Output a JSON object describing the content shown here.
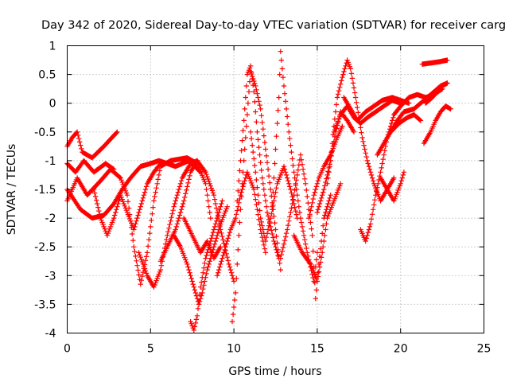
{
  "chart_data": {
    "type": "scatter",
    "title": "Day 342 of 2020, Sidereal Day-to-day VTEC variation (SDTVAR) for receiver carg",
    "xlabel": "GPS time / hours",
    "ylabel": "SDTVAR / TECUs",
    "xlim": [
      0,
      25
    ],
    "ylim": [
      -4,
      1
    ],
    "xticks": [
      0,
      5,
      10,
      15,
      20,
      25
    ],
    "yticks": [
      -4,
      -3.5,
      -3,
      -2.5,
      -2,
      -1.5,
      -1,
      -0.5,
      0,
      0.5,
      1
    ],
    "xtick_labels": [
      "0",
      "5",
      "10",
      "15",
      "20",
      "25"
    ],
    "ytick_labels": [
      "-4",
      "-3.5",
      "-3",
      "-2.5",
      "-2",
      "-1.5",
      "-1",
      "-0.5",
      "0",
      "0.5",
      "1"
    ],
    "grid": true,
    "marker": "plus",
    "color": "#ff0000",
    "tracks": [
      [
        [
          0.0,
          -0.75
        ],
        [
          0.3,
          -0.6
        ],
        [
          0.6,
          -0.5
        ],
        [
          0.9,
          -0.85
        ],
        [
          1.5,
          -0.95
        ],
        [
          2.2,
          -0.75
        ],
        [
          3.0,
          -0.5
        ]
      ],
      [
        [
          0.0,
          -1.05
        ],
        [
          0.5,
          -1.2
        ],
        [
          1.0,
          -1.0
        ],
        [
          1.6,
          -1.2
        ],
        [
          2.3,
          -1.05
        ],
        [
          2.8,
          -1.15
        ]
      ],
      [
        [
          0.0,
          -1.7
        ],
        [
          0.6,
          -1.3
        ],
        [
          1.2,
          -1.6
        ],
        [
          2.0,
          -1.35
        ],
        [
          2.6,
          -1.15
        ],
        [
          3.2,
          -1.3
        ],
        [
          3.6,
          -1.6
        ],
        [
          4.0,
          -2.5
        ],
        [
          4.4,
          -3.15
        ],
        [
          4.8,
          -2.6
        ],
        [
          5.2,
          -1.7
        ],
        [
          5.6,
          -1.1
        ],
        [
          6.2,
          -1.0
        ],
        [
          7.2,
          -0.95
        ],
        [
          7.8,
          -1.05
        ],
        [
          8.3,
          -1.4
        ],
        [
          8.6,
          -2.0
        ]
      ],
      [
        [
          0.0,
          -1.5
        ],
        [
          0.8,
          -1.85
        ],
        [
          1.5,
          -2.0
        ],
        [
          2.2,
          -1.95
        ],
        [
          2.8,
          -1.75
        ],
        [
          3.3,
          -1.5
        ],
        [
          3.8,
          -1.3
        ],
        [
          4.4,
          -1.1
        ],
        [
          5.0,
          -1.05
        ],
        [
          5.5,
          -1.0
        ],
        [
          6.5,
          -1.1
        ],
        [
          7.3,
          -1.0
        ],
        [
          8.0,
          -1.2
        ]
      ],
      [
        [
          1.6,
          -1.5
        ],
        [
          2.0,
          -2.0
        ],
        [
          2.4,
          -2.3
        ],
        [
          2.8,
          -2.0
        ],
        [
          3.2,
          -1.6
        ],
        [
          3.6,
          -1.9
        ],
        [
          4.0,
          -2.2
        ],
        [
          4.4,
          -1.8
        ],
        [
          4.8,
          -1.4
        ],
        [
          5.2,
          -1.2
        ],
        [
          5.6,
          -1.05
        ]
      ],
      [
        [
          4.3,
          -2.6
        ],
        [
          4.8,
          -3.0
        ],
        [
          5.2,
          -3.2
        ],
        [
          5.6,
          -2.9
        ],
        [
          6.0,
          -2.3
        ],
        [
          6.4,
          -1.8
        ],
        [
          6.9,
          -1.3
        ],
        [
          7.4,
          -1.05
        ],
        [
          7.8,
          -1.0
        ]
      ],
      [
        [
          5.6,
          -2.75
        ],
        [
          6.0,
          -2.5
        ],
        [
          6.5,
          -2.2
        ],
        [
          7.0,
          -1.7
        ],
        [
          7.4,
          -1.2
        ],
        [
          7.8,
          -1.0
        ],
        [
          8.3,
          -1.2
        ],
        [
          8.8,
          -1.6
        ],
        [
          9.2,
          -2.2
        ],
        [
          9.7,
          -2.8
        ],
        [
          10.0,
          -3.1
        ]
      ],
      [
        [
          6.4,
          -2.3
        ],
        [
          6.8,
          -2.5
        ],
        [
          7.2,
          -2.8
        ],
        [
          7.6,
          -3.2
        ],
        [
          7.9,
          -3.5
        ],
        [
          8.1,
          -3.3
        ],
        [
          8.4,
          -2.9
        ],
        [
          8.8,
          -2.5
        ],
        [
          9.2,
          -2.1
        ],
        [
          9.6,
          -1.8
        ]
      ],
      [
        [
          7.0,
          -2.0
        ],
        [
          7.5,
          -2.3
        ],
        [
          8.0,
          -2.6
        ],
        [
          8.4,
          -2.4
        ],
        [
          8.8,
          -2.7
        ],
        [
          9.2,
          -2.5
        ]
      ],
      [
        [
          7.4,
          -3.8
        ],
        [
          7.6,
          -3.95
        ],
        [
          7.8,
          -3.7
        ],
        [
          8.0,
          -3.2
        ],
        [
          8.3,
          -2.7
        ],
        [
          8.6,
          -2.4
        ],
        [
          9.0,
          -2.0
        ],
        [
          9.3,
          -1.7
        ]
      ],
      [
        [
          9.0,
          -3.0
        ],
        [
          9.4,
          -2.6
        ],
        [
          9.8,
          -2.2
        ],
        [
          10.1,
          -2.0
        ],
        [
          10.4,
          -1.6
        ],
        [
          10.8,
          -1.2
        ],
        [
          11.2,
          -1.5
        ],
        [
          11.6,
          -2.2
        ],
        [
          11.9,
          -2.6
        ]
      ],
      [
        [
          9.9,
          -3.8
        ],
        [
          10.1,
          -3.3
        ],
        [
          10.3,
          -2.3
        ],
        [
          10.5,
          -1.4
        ],
        [
          10.7,
          -0.6
        ],
        [
          10.9,
          0.2
        ],
        [
          11.0,
          0.55
        ],
        [
          11.3,
          0.3
        ],
        [
          11.6,
          -0.1
        ],
        [
          11.9,
          -0.8
        ],
        [
          12.2,
          -1.5
        ],
        [
          12.5,
          -2.2
        ],
        [
          12.8,
          -2.9
        ]
      ],
      [
        [
          10.2,
          -1.7
        ],
        [
          10.4,
          -1.0
        ],
        [
          10.6,
          -0.3
        ],
        [
          10.8,
          0.5
        ],
        [
          11.0,
          0.65
        ],
        [
          11.2,
          0.2
        ],
        [
          11.4,
          -0.5
        ],
        [
          11.7,
          -1.3
        ],
        [
          12.0,
          -1.9
        ],
        [
          12.4,
          -2.4
        ],
        [
          12.7,
          -2.7
        ]
      ],
      [
        [
          11.0,
          -0.5
        ],
        [
          11.3,
          -1.2
        ],
        [
          11.6,
          -2.0
        ],
        [
          11.9,
          -2.4
        ],
        [
          12.2,
          -2.0
        ],
        [
          12.6,
          -1.4
        ],
        [
          13.0,
          -1.1
        ],
        [
          13.4,
          -1.5
        ],
        [
          13.8,
          -2.0
        ]
      ],
      [
        [
          12.3,
          -1.8
        ],
        [
          12.5,
          -0.8
        ],
        [
          12.7,
          0.1
        ],
        [
          12.8,
          0.9
        ],
        [
          13.0,
          0.3
        ],
        [
          13.3,
          -0.5
        ],
        [
          13.6,
          -1.2
        ],
        [
          14.0,
          -2.0
        ],
        [
          14.4,
          -2.6
        ],
        [
          14.8,
          -3.1
        ],
        [
          15.0,
          -2.6
        ]
      ],
      [
        [
          12.8,
          -2.7
        ],
        [
          13.2,
          -2.2
        ],
        [
          13.6,
          -1.6
        ],
        [
          14.0,
          -0.9
        ],
        [
          14.3,
          -1.4
        ],
        [
          14.7,
          -2.3
        ],
        [
          14.9,
          -3.4
        ],
        [
          15.1,
          -2.8
        ],
        [
          15.4,
          -2.0
        ],
        [
          15.8,
          -1.6
        ]
      ],
      [
        [
          13.6,
          -2.3
        ],
        [
          14.1,
          -2.6
        ],
        [
          14.6,
          -2.8
        ],
        [
          15.0,
          -3.1
        ],
        [
          15.3,
          -2.6
        ],
        [
          15.6,
          -2.0
        ],
        [
          16.0,
          -1.7
        ],
        [
          16.4,
          -1.4
        ]
      ],
      [
        [
          14.5,
          -2.0
        ],
        [
          14.8,
          -1.6
        ],
        [
          15.1,
          -1.3
        ],
        [
          15.4,
          -1.1
        ],
        [
          15.8,
          -0.9
        ],
        [
          16.2,
          -0.6
        ],
        [
          16.5,
          -0.4
        ]
      ],
      [
        [
          15.0,
          -1.9
        ],
        [
          15.4,
          -1.5
        ],
        [
          15.8,
          -1.0
        ],
        [
          16.1,
          -0.5
        ],
        [
          16.4,
          -0.15
        ],
        [
          16.8,
          -0.3
        ],
        [
          17.2,
          -0.5
        ]
      ],
      [
        [
          15.6,
          -1.4
        ],
        [
          15.8,
          -1.0
        ],
        [
          16.0,
          -0.4
        ],
        [
          16.2,
          0.1
        ],
        [
          16.5,
          0.45
        ],
        [
          16.8,
          0.75
        ],
        [
          17.0,
          0.6
        ],
        [
          17.3,
          0.1
        ],
        [
          17.7,
          -0.6
        ],
        [
          18.0,
          -1.0
        ],
        [
          18.4,
          -1.4
        ],
        [
          18.8,
          -1.7
        ],
        [
          19.2,
          -1.5
        ],
        [
          19.6,
          -1.3
        ]
      ],
      [
        [
          16.0,
          -0.5
        ],
        [
          16.4,
          -0.2
        ],
        [
          16.8,
          -0.05
        ],
        [
          17.2,
          -0.25
        ],
        [
          17.6,
          -0.35
        ],
        [
          18.0,
          -0.25
        ],
        [
          18.5,
          -0.15
        ],
        [
          19.0,
          -0.05
        ],
        [
          19.5,
          0.05
        ],
        [
          20.0,
          0.0
        ]
      ],
      [
        [
          16.6,
          0.1
        ],
        [
          17.0,
          -0.1
        ],
        [
          17.4,
          -0.3
        ],
        [
          17.9,
          -0.15
        ],
        [
          18.4,
          -0.05
        ],
        [
          18.9,
          0.05
        ],
        [
          19.5,
          0.1
        ],
        [
          20.0,
          0.05
        ],
        [
          20.5,
          0.0
        ]
      ],
      [
        [
          17.6,
          -2.2
        ],
        [
          17.9,
          -2.4
        ],
        [
          18.2,
          -2.1
        ],
        [
          18.5,
          -1.6
        ],
        [
          18.8,
          -1.2
        ],
        [
          19.2,
          -0.6
        ],
        [
          19.6,
          -0.2
        ],
        [
          20.0,
          -0.05
        ],
        [
          20.5,
          0.1
        ],
        [
          21.0,
          0.15
        ],
        [
          21.5,
          0.1
        ],
        [
          22.0,
          0.15
        ],
        [
          22.5,
          0.25
        ]
      ],
      [
        [
          18.6,
          -0.9
        ],
        [
          19.0,
          -0.7
        ],
        [
          19.4,
          -0.5
        ],
        [
          19.8,
          -0.3
        ],
        [
          20.2,
          -0.15
        ],
        [
          20.8,
          -0.1
        ],
        [
          21.2,
          0.0
        ],
        [
          21.8,
          0.15
        ],
        [
          22.4,
          0.3
        ],
        [
          22.8,
          0.35
        ]
      ],
      [
        [
          18.8,
          -1.3
        ],
        [
          19.2,
          -1.5
        ],
        [
          19.6,
          -1.7
        ],
        [
          20.0,
          -1.4
        ],
        [
          20.2,
          -1.2
        ]
      ],
      [
        [
          19.4,
          -0.5
        ],
        [
          19.9,
          -0.35
        ],
        [
          20.4,
          -0.25
        ],
        [
          20.8,
          -0.2
        ],
        [
          21.2,
          -0.3
        ]
      ],
      [
        [
          21.4,
          -0.7
        ],
        [
          21.8,
          -0.5
        ],
        [
          22.1,
          -0.3
        ],
        [
          22.4,
          -0.15
        ],
        [
          22.7,
          -0.05
        ],
        [
          23.0,
          -0.1
        ]
      ],
      [
        [
          21.3,
          0.68
        ],
        [
          21.8,
          0.7
        ],
        [
          22.3,
          0.72
        ],
        [
          22.8,
          0.75
        ]
      ],
      [
        [
          21.5,
          0.0
        ],
        [
          21.9,
          0.1
        ],
        [
          22.2,
          0.2
        ],
        [
          22.5,
          0.3
        ],
        [
          22.8,
          0.35
        ]
      ]
    ]
  }
}
